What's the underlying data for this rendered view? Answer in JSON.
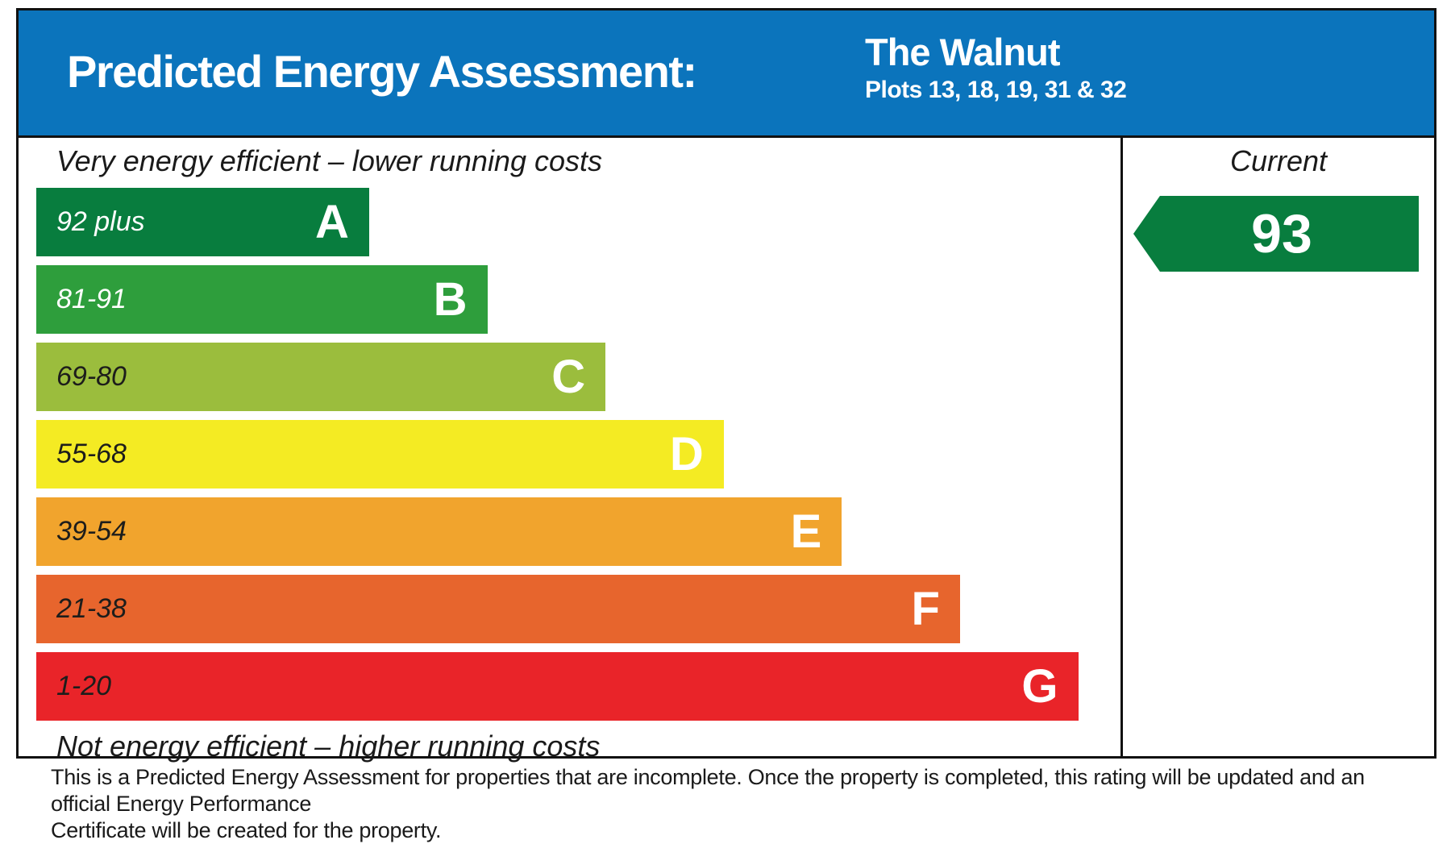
{
  "header": {
    "title": "Predicted Energy Assessment:",
    "property_name": "The Walnut",
    "plots": "Plots 13, 18, 19, 31 & 32",
    "background": "#0b74bc"
  },
  "chart_data": {
    "type": "bar",
    "title": "Predicted Energy Assessment",
    "property": "The Walnut, Plots 13, 18, 19, 31 & 32",
    "top_label": "Very energy efficient – lower running costs",
    "bottom_label": "Not energy efficient – higher running costs",
    "current_column_header": "Current",
    "current_rating": "93",
    "current_rating_band": "A",
    "arrow_color": "#087d3e",
    "bands": [
      {
        "letter": "A",
        "range": "92 plus",
        "color": "#087d3e",
        "width_pct": 30.7,
        "range_text_color": "#ffffff"
      },
      {
        "letter": "B",
        "range": "81-91",
        "color": "#2e9e3c",
        "width_pct": 41.6,
        "range_text_color": "#ffffff"
      },
      {
        "letter": "C",
        "range": "69-80",
        "color": "#9bbd3d",
        "width_pct": 52.5,
        "range_text_color": "#1d1d1b"
      },
      {
        "letter": "D",
        "range": "55-68",
        "color": "#f4eb23",
        "width_pct": 63.4,
        "range_text_color": "#1d1d1b"
      },
      {
        "letter": "E",
        "range": "39-54",
        "color": "#f1a42d",
        "width_pct": 74.3,
        "range_text_color": "#1d1d1b"
      },
      {
        "letter": "F",
        "range": "21-38",
        "color": "#e7652d",
        "width_pct": 85.2,
        "range_text_color": "#1d1d1b"
      },
      {
        "letter": "G",
        "range": "1-20",
        "color": "#e92429",
        "width_pct": 96.1,
        "range_text_color": "#1d1d1b"
      }
    ]
  },
  "footer": {
    "line1": "This is a Predicted Energy Assessment for properties that are incomplete. Once the property is completed, this rating will be updated and an official Energy Performance",
    "line2": "Certificate will be created for the property."
  }
}
